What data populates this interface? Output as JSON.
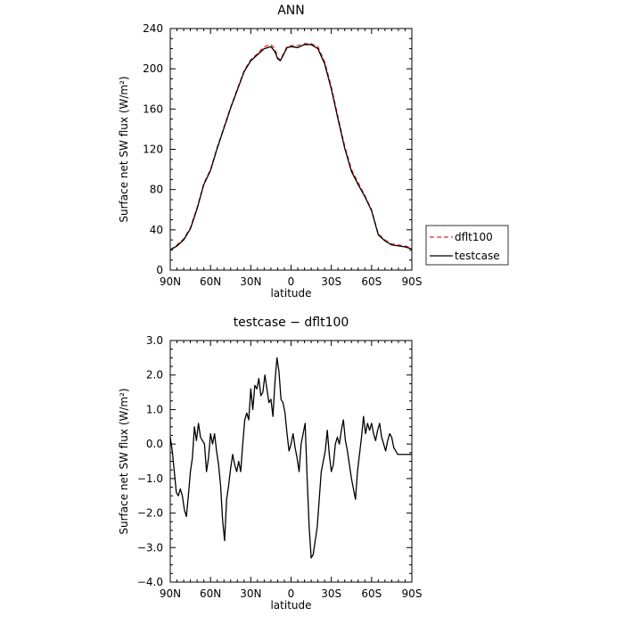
{
  "chart_data": [
    {
      "type": "line",
      "title": "ANN",
      "xlabel": "latitude",
      "ylabel": "Surface net SW flux (W/m²)",
      "x_ticks": [
        "90N",
        "60N",
        "30N",
        "0",
        "30S",
        "60S",
        "90S"
      ],
      "x_tick_values": [
        90,
        60,
        30,
        0,
        -30,
        -60,
        -90
      ],
      "ylim": [
        0,
        240
      ],
      "y_ticks": [
        "0",
        "40",
        "80",
        "120",
        "160",
        "200",
        "240"
      ],
      "y_tick_values": [
        0,
        40,
        80,
        120,
        160,
        200,
        240
      ],
      "x": [
        90,
        85,
        80,
        75,
        70,
        65,
        60,
        55,
        50,
        45,
        40,
        35,
        30,
        25,
        20,
        15,
        12,
        10,
        8,
        6,
        3,
        0,
        -5,
        -10,
        -15,
        -20,
        -25,
        -30,
        -35,
        -40,
        -45,
        -50,
        -55,
        -60,
        -65,
        -70,
        -75,
        -80,
        -85,
        -90
      ],
      "series": [
        {
          "name": "dflt100",
          "color": "#e8251f",
          "dash": "dashed",
          "values": [
            20,
            25,
            31,
            42,
            62,
            86,
            100,
            122,
            142,
            162,
            180,
            198,
            209,
            215,
            222,
            224,
            220,
            211,
            209,
            214,
            222,
            223,
            223,
            225,
            225,
            222,
            207,
            182,
            152,
            123,
            100,
            87,
            74,
            60,
            36,
            30,
            26,
            25,
            24,
            22
          ]
        },
        {
          "name": "testcase",
          "color": "#000000",
          "dash": "solid",
          "values": [
            20,
            24,
            30,
            41,
            61,
            85,
            99,
            121,
            141,
            161,
            179,
            197,
            208,
            214,
            220,
            222,
            217,
            210,
            208,
            213,
            221,
            222,
            221,
            224,
            224,
            220,
            205,
            180,
            150,
            121,
            98,
            85,
            73,
            59,
            35,
            29,
            25,
            24,
            23,
            21
          ]
        }
      ]
    },
    {
      "type": "line",
      "title": "testcase − dflt100",
      "xlabel": "latitude",
      "ylabel": "Surface net SW flux (W/m²)",
      "x_ticks": [
        "90N",
        "60N",
        "30N",
        "0",
        "30S",
        "60S",
        "90S"
      ],
      "x_tick_values": [
        90,
        60,
        30,
        0,
        -30,
        -60,
        -90
      ],
      "ylim": [
        -4,
        3
      ],
      "y_ticks": [
        "−4.0",
        "−3.0",
        "−2.0",
        "−1.0",
        "0.0",
        "1.0",
        "2.0",
        "3.0"
      ],
      "y_tick_values": [
        -4,
        -3,
        -2,
        -1,
        0,
        1,
        2,
        3
      ],
      "x": [
        90,
        88.5,
        87,
        85.5,
        84,
        82.5,
        81,
        79.5,
        78,
        76.5,
        75,
        73.5,
        72,
        70.5,
        69,
        67.5,
        66,
        64.5,
        63,
        61.5,
        60,
        58.5,
        57,
        55.5,
        54,
        52.5,
        51,
        49.5,
        48,
        46.5,
        45,
        43.5,
        42,
        40.5,
        39,
        37.5,
        36,
        34.5,
        33,
        31.5,
        30,
        28.5,
        27,
        25.5,
        24,
        22.5,
        21,
        19.5,
        18,
        16.5,
        15,
        13.5,
        12,
        10.5,
        9,
        7.5,
        6,
        4.5,
        3,
        1.5,
        0,
        -1.5,
        -3,
        -4.5,
        -6,
        -7.5,
        -9,
        -10.5,
        -12,
        -13.5,
        -15,
        -16.5,
        -18,
        -19.5,
        -21,
        -22.5,
        -24,
        -25.5,
        -27,
        -28.5,
        -30,
        -31.5,
        -33,
        -34.5,
        -36,
        -37.5,
        -39,
        -40.5,
        -42,
        -43.5,
        -45,
        -46.5,
        -48,
        -49.5,
        -51,
        -52.5,
        -54,
        -55.5,
        -57,
        -58.5,
        -60,
        -61.5,
        -63,
        -64.5,
        -66,
        -67.5,
        -69,
        -70.5,
        -72,
        -73.5,
        -75,
        -76.5,
        -78,
        -79.5,
        -81,
        -82.5,
        -84,
        -85.5,
        -87,
        -88.5,
        -90
      ],
      "series": [
        {
          "name": "",
          "color": "#000000",
          "dash": "solid",
          "values": [
            0.2,
            -0.2,
            -0.8,
            -1.4,
            -1.5,
            -1.3,
            -1.5,
            -1.9,
            -2.1,
            -1.5,
            -0.8,
            -0.4,
            0.5,
            0.1,
            0.6,
            0.2,
            0.1,
            0.0,
            -0.8,
            -0.4,
            0.3,
            0.0,
            0.3,
            -0.2,
            -0.6,
            -1.2,
            -2.2,
            -2.8,
            -1.6,
            -1.2,
            -0.7,
            -0.3,
            -0.6,
            -0.8,
            -0.5,
            -0.8,
            0.0,
            0.7,
            0.9,
            0.7,
            1.6,
            1.0,
            1.7,
            1.6,
            1.9,
            1.4,
            1.5,
            2.0,
            1.6,
            1.2,
            1.3,
            0.8,
            1.8,
            2.5,
            2.1,
            1.3,
            1.2,
            0.9,
            0.3,
            -0.2,
            0.0,
            0.3,
            -0.1,
            -0.4,
            -0.8,
            0.0,
            0.3,
            0.6,
            -1.0,
            -2.4,
            -3.3,
            -3.2,
            -2.8,
            -2.4,
            -1.6,
            -0.8,
            -0.5,
            -0.2,
            0.4,
            -0.3,
            -0.8,
            -0.6,
            0.0,
            0.2,
            0.0,
            0.4,
            0.7,
            0.1,
            -0.2,
            -0.6,
            -1.0,
            -1.3,
            -1.6,
            -0.8,
            -0.3,
            0.2,
            0.8,
            0.3,
            0.6,
            0.4,
            0.6,
            0.3,
            0.1,
            0.4,
            0.6,
            0.2,
            0.0,
            -0.2,
            0.1,
            0.3,
            0.2,
            -0.1,
            -0.2,
            -0.3,
            -0.3,
            -0.3,
            -0.3,
            -0.3,
            -0.3,
            -0.3,
            -0.3
          ]
        }
      ]
    }
  ],
  "legend": {
    "items": [
      {
        "label": "dflt100",
        "color": "#e8251f",
        "dash": "dashed"
      },
      {
        "label": "testcase",
        "color": "#000000",
        "dash": "solid"
      }
    ]
  }
}
